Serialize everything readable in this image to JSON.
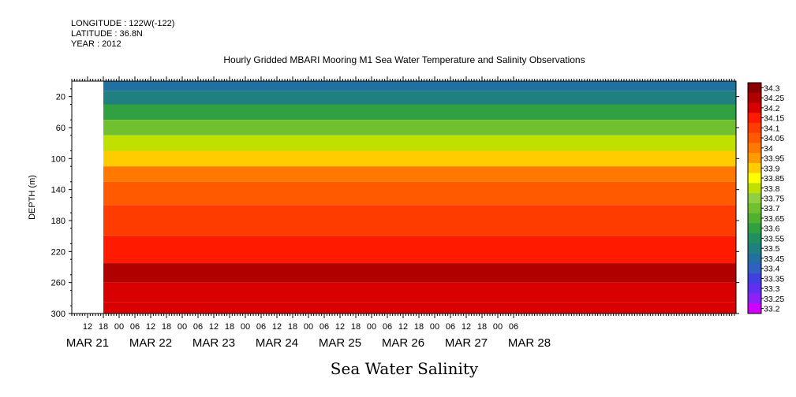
{
  "meta": {
    "longitude": "LONGITUDE : 122W(-122)",
    "latitude": "LATITUDE : 36.8N",
    "year": "YEAR : 2012"
  },
  "title": "Hourly Gridded MBARI Mooring M1 Sea Water Temperature and Salinity Observations",
  "chart_data": {
    "type": "heatmap",
    "title": "Hourly Gridded MBARI Mooring M1 Sea Water Temperature and Salinity Observations",
    "xlabel": "Sea Water Salinity",
    "ylabel": "DEPTH (m)",
    "y_axis": {
      "range": [
        300,
        0
      ],
      "reversed": true,
      "ticks": [
        20,
        60,
        100,
        140,
        180,
        220,
        260,
        300
      ]
    },
    "x_axis": {
      "range_hours": [
        "MAR 21 06",
        "MAR 28 12"
      ],
      "hour_ticks": [
        "12",
        "18",
        "00",
        "06",
        "12",
        "18",
        "00",
        "06",
        "12",
        "18",
        "00",
        "06",
        "12",
        "18",
        "00",
        "06",
        "12",
        "18",
        "00",
        "06",
        "12",
        "18",
        "00",
        "06",
        "12",
        "18",
        "00",
        "06"
      ],
      "date_labels": [
        "MAR 21",
        "MAR 22",
        "MAR 23",
        "MAR 24",
        "MAR 25",
        "MAR 26",
        "MAR 27",
        "MAR 28"
      ],
      "data_start": "MAR 21 18"
    },
    "colorbar": {
      "levels": [
        "34.3",
        "34.25",
        "34.2",
        "34.15",
        "34.1",
        "34.05",
        "34",
        "33.95",
        "33.9",
        "33.85",
        "33.8",
        "33.75",
        "33.7",
        "33.65",
        "33.6",
        "33.55",
        "33.5",
        "33.45",
        "33.4",
        "33.35",
        "33.3",
        "33.25",
        "33.2"
      ],
      "colors": [
        "#8b0000",
        "#b00000",
        "#d80000",
        "#ff1a00",
        "#ff3c00",
        "#ff5a00",
        "#ff7800",
        "#ff9a00",
        "#ffcc00",
        "#ffff00",
        "#c0e000",
        "#90d040",
        "#70c030",
        "#50b030",
        "#30a040",
        "#209060",
        "#208080",
        "#2070a0",
        "#3060c0",
        "#4040e0",
        "#6030f0",
        "#9020f8",
        "#d000ff"
      ]
    },
    "depth_profile": [
      {
        "depth": 5,
        "salinity": 33.45
      },
      {
        "depth": 20,
        "salinity": 33.5
      },
      {
        "depth": 40,
        "salinity": 33.6
      },
      {
        "depth": 60,
        "salinity": 33.7
      },
      {
        "depth": 80,
        "salinity": 33.8
      },
      {
        "depth": 100,
        "salinity": 33.92
      },
      {
        "depth": 120,
        "salinity": 34.0
      },
      {
        "depth": 140,
        "salinity": 34.08
      },
      {
        "depth": 180,
        "salinity": 34.1
      },
      {
        "depth": 220,
        "salinity": 34.18
      },
      {
        "depth": 250,
        "salinity": 34.25
      },
      {
        "depth": 270,
        "salinity": 34.24
      },
      {
        "depth": 300,
        "salinity": 34.2
      }
    ]
  }
}
